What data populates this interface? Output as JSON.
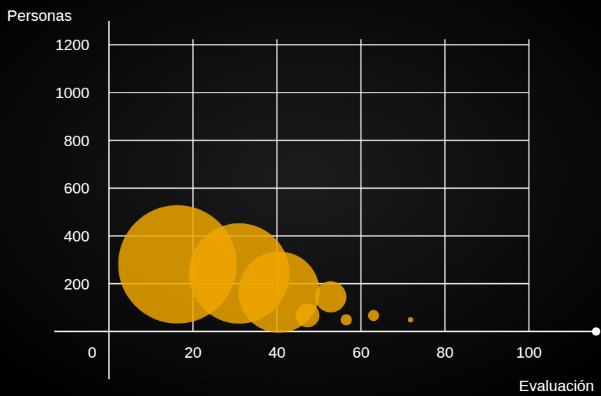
{
  "chart_data": {
    "type": "bubble",
    "x_label": "Evaluación",
    "y_label": "Personas",
    "x": [
      16.3,
      31,
      40.5,
      52.8,
      47.3,
      56.5,
      63,
      71.8
    ],
    "values": [
      281,
      243,
      165,
      145,
      67,
      49,
      67,
      49
    ],
    "sizes": [
      100,
      72,
      47,
      7,
      4,
      0.9,
      0.9,
      0.2
    ],
    "color": "#eda600",
    "xlim": [
      -13,
      116
    ],
    "ylim": [
      -200,
      1300
    ],
    "xticks": [
      0,
      20,
      40,
      60,
      80,
      100
    ],
    "yticks": [
      200,
      400,
      600,
      800,
      1000,
      1200
    ],
    "grid": true
  }
}
